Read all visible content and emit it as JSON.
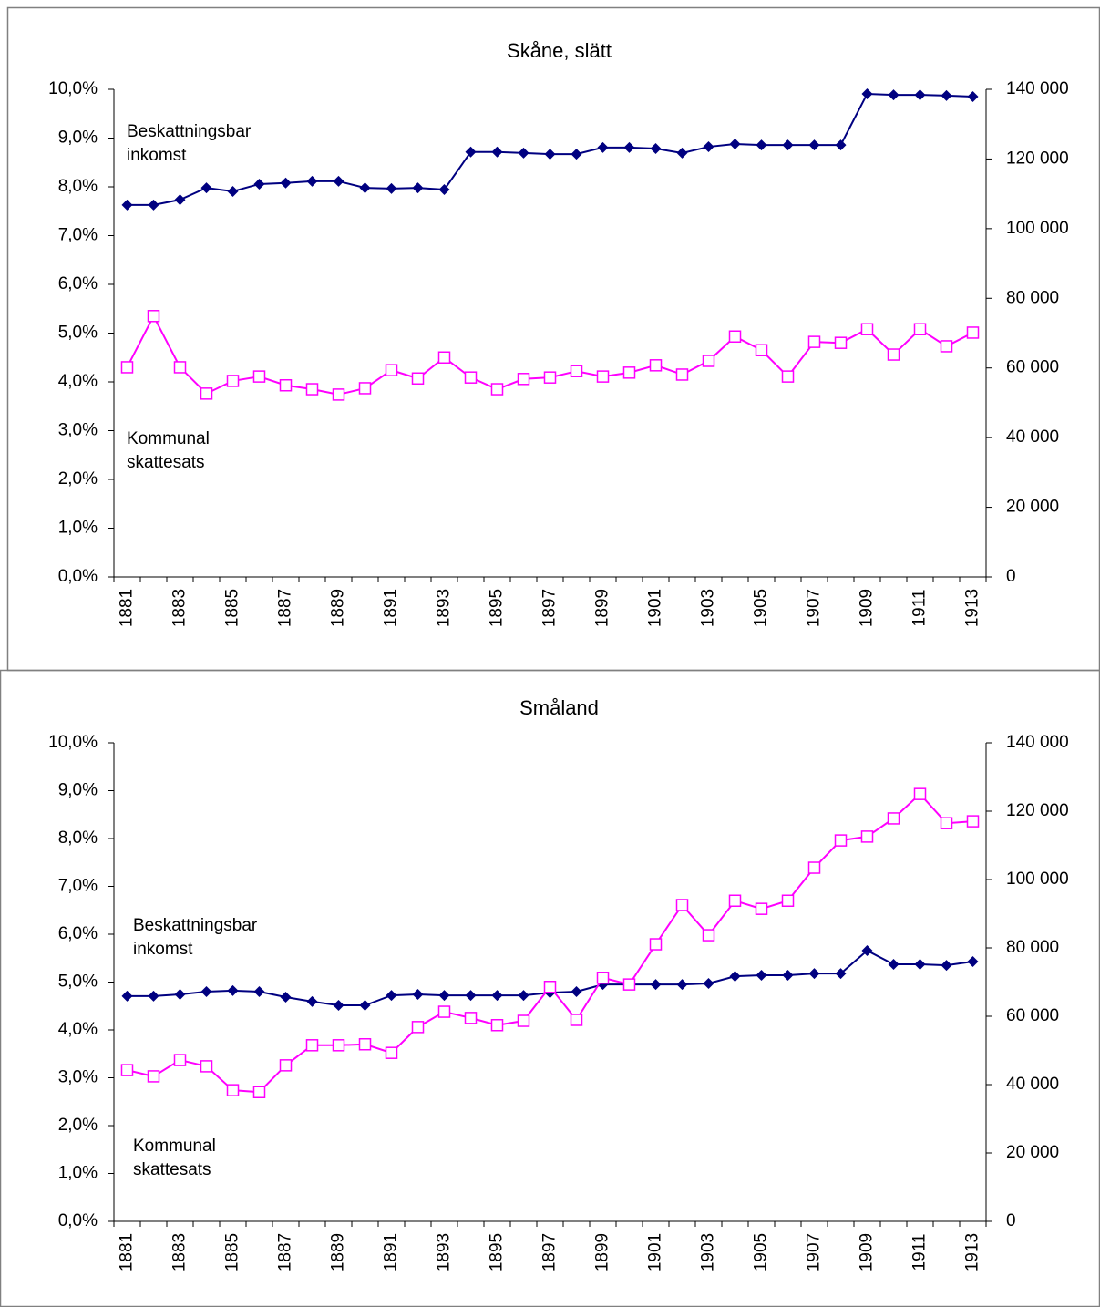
{
  "chart_data": [
    {
      "type": "line",
      "title": "Skåne, slätt",
      "categories": [
        "1881",
        null,
        "1883",
        null,
        "1885",
        null,
        "1887",
        null,
        "1889",
        null,
        "1891",
        null,
        "1893",
        null,
        "1895",
        null,
        "1897",
        null,
        "1899",
        null,
        "1901",
        null,
        "1903",
        null,
        "1905",
        null,
        "1907",
        null,
        "1909",
        null,
        "1911",
        null,
        "1913"
      ],
      "ylim": [
        0,
        10
      ],
      "yticks": [
        {
          "value": 0,
          "label": "0,0%"
        },
        {
          "value": 1,
          "label": "1,0%"
        },
        {
          "value": 2,
          "label": "2,0%"
        },
        {
          "value": 3,
          "label": "3,0%"
        },
        {
          "value": 4,
          "label": "4,0%"
        },
        {
          "value": 5,
          "label": "5,0%"
        },
        {
          "value": 6,
          "label": "6,0%"
        },
        {
          "value": 7,
          "label": "7,0%"
        },
        {
          "value": 8,
          "label": "8,0%"
        },
        {
          "value": 9,
          "label": "9,0%"
        },
        {
          "value": 10,
          "label": "10,0%"
        }
      ],
      "y2lim": [
        0,
        140000
      ],
      "y2ticks": [
        0,
        {
          "value": 20000,
          "label": "20 000"
        },
        {
          "value": 40000,
          "label": "40 000"
        },
        {
          "value": 60000,
          "label": "60 000"
        },
        {
          "value": 80000,
          "label": "80 000"
        },
        {
          "value": 100000,
          "label": "100 000"
        },
        {
          "value": 120000,
          "label": "120 000"
        },
        {
          "value": 140000,
          "label": "140 000"
        }
      ],
      "series": [
        {
          "color": "#000080",
          "marker": "diamond",
          "axis": "y2",
          "values": [
            106800,
            106800,
            108300,
            111700,
            110700,
            112800,
            113100,
            113600,
            113600,
            111700,
            111500,
            111700,
            111200,
            122000,
            122000,
            121700,
            121400,
            121400,
            123300,
            123300,
            123000,
            121700,
            123500,
            124300,
            124000,
            124000,
            124000,
            124000,
            138700,
            138400,
            138400,
            138200,
            137900
          ]
        },
        {
          "color": "#ff00ff",
          "marker": "square",
          "values": [
            4.3,
            5.35,
            4.3,
            3.76,
            4.02,
            4.11,
            3.93,
            3.85,
            3.74,
            3.87,
            4.24,
            4.07,
            4.5,
            4.09,
            3.85,
            4.06,
            4.09,
            4.22,
            4.11,
            4.19,
            4.34,
            4.15,
            4.43,
            4.93,
            4.65,
            4.11,
            4.82,
            4.8,
            5.08,
            4.56,
            5.08,
            4.73,
            5.01
          ]
        }
      ],
      "annotations": [
        {
          "lines": [
            "Beskattningsbar",
            "inkomst"
          ]
        },
        {
          "lines": [
            "Kommunal",
            "skattesats"
          ]
        }
      ]
    },
    {
      "type": "line",
      "title": "Småland",
      "categories": [
        "1881",
        null,
        "1883",
        null,
        "1885",
        null,
        "1887",
        null,
        "1889",
        null,
        "1891",
        null,
        "1893",
        null,
        "1895",
        null,
        "1897",
        null,
        "1899",
        null,
        "1901",
        null,
        "1903",
        null,
        "1905",
        null,
        "1907",
        null,
        "1909",
        null,
        "1911",
        null,
        "1913"
      ],
      "ylim": [
        0,
        10
      ],
      "yticks": [
        {
          "value": 0,
          "label": "0,0%"
        },
        {
          "value": 1,
          "label": "1,0%"
        },
        {
          "value": 2,
          "label": "2,0%"
        },
        {
          "value": 3,
          "label": "3,0%"
        },
        {
          "value": 4,
          "label": "4,0%"
        },
        {
          "value": 5,
          "label": "5,0%"
        },
        {
          "value": 6,
          "label": "6,0%"
        },
        {
          "value": 7,
          "label": "7,0%"
        },
        {
          "value": 8,
          "label": "8,0%"
        },
        {
          "value": 9,
          "label": "9,0%"
        },
        {
          "value": 10,
          "label": "10,0%"
        }
      ],
      "y2lim": [
        0,
        140000
      ],
      "y2ticks": [
        0,
        {
          "value": 20000,
          "label": "20 000"
        },
        {
          "value": 40000,
          "label": "40 000"
        },
        {
          "value": 60000,
          "label": "60 000"
        },
        {
          "value": 80000,
          "label": "80 000"
        },
        {
          "value": 100000,
          "label": "100 000"
        },
        {
          "value": 120000,
          "label": "120 000"
        },
        {
          "value": 140000,
          "label": "140 000"
        }
      ],
      "series": [
        {
          "color": "#000080",
          "marker": "diamond",
          "axis": "y2",
          "values": [
            65900,
            65900,
            66400,
            67200,
            67500,
            67200,
            65600,
            64300,
            63200,
            63200,
            66100,
            66400,
            66100,
            66100,
            66100,
            66100,
            66900,
            67200,
            69300,
            69300,
            69300,
            69300,
            69600,
            71700,
            72000,
            72000,
            72500,
            72500,
            79200,
            75200,
            75200,
            74900,
            76000
          ]
        },
        {
          "color": "#ff00ff",
          "marker": "square",
          "values": [
            3.16,
            3.03,
            3.37,
            3.24,
            2.74,
            2.7,
            3.26,
            3.68,
            3.68,
            3.7,
            3.52,
            4.06,
            4.38,
            4.25,
            4.1,
            4.19,
            4.9,
            4.21,
            5.09,
            4.95,
            5.79,
            6.61,
            5.98,
            6.7,
            6.53,
            6.7,
            7.39,
            7.96,
            8.04,
            8.42,
            8.93,
            8.32,
            8.36
          ]
        }
      ],
      "annotations": [
        {
          "lines": [
            "Beskattningsbar",
            "inkomst"
          ]
        },
        {
          "lines": [
            "Kommunal",
            "skattesats"
          ]
        }
      ]
    }
  ]
}
